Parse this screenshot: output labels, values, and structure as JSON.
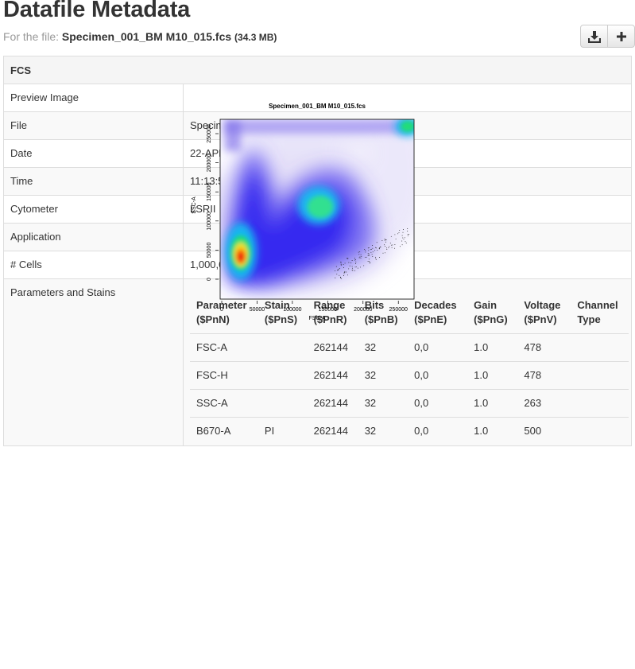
{
  "header": {
    "title": "Datafile Metadata",
    "for_prefix": "For the file:",
    "file_name": "Specimen_001_BM M10_015.fcs",
    "file_size": "(34.3 MB)"
  },
  "buttons": {
    "download_icon": "download-icon",
    "add_icon": "plus-icon"
  },
  "section_title": "FCS",
  "preview": {
    "label": "Preview Image",
    "plot_title": "Specimen_001_BM M10_015.fcs",
    "xlabel": "FSC-A",
    "ylabel": "SSC-A",
    "x_ticks": [
      "0",
      "50000",
      "100000",
      "150000",
      "200000",
      "250000"
    ],
    "y_ticks": [
      "0",
      "50000",
      "100000",
      "150000",
      "200000",
      "250000"
    ]
  },
  "rows": [
    {
      "label": "File",
      "value": "Specimen_001_BM M10_015.fcs"
    },
    {
      "label": "Date",
      "value": "22-APR-2015"
    },
    {
      "label": "Time",
      "value": "11:13:56"
    },
    {
      "label": "Cytometer",
      "value": "LSRII"
    },
    {
      "label": "Application",
      "value": ""
    },
    {
      "label": "# Cells",
      "value": "1,000,000"
    }
  ],
  "params_label": "Parameters and Stains",
  "param_headers": [
    {
      "line1": "Parameter",
      "line2": "($PnN)"
    },
    {
      "line1": "Stain",
      "line2": "($PnS)"
    },
    {
      "line1": "Range",
      "line2": "($PnR)"
    },
    {
      "line1": "Bits",
      "line2": "($PnB)"
    },
    {
      "line1": "Decades",
      "line2": "($PnE)"
    },
    {
      "line1": "Gain",
      "line2": "($PnG)"
    },
    {
      "line1": "Voltage",
      "line2": "($PnV)"
    },
    {
      "line1": "Channel",
      "line2": "Type"
    }
  ],
  "param_rows": [
    [
      "FSC-A",
      "",
      "262144",
      "32",
      "0,0",
      "1.0",
      "478",
      ""
    ],
    [
      "FSC-H",
      "",
      "262144",
      "32",
      "0,0",
      "1.0",
      "478",
      ""
    ],
    [
      "SSC-A",
      "",
      "262144",
      "32",
      "0,0",
      "1.0",
      "263",
      ""
    ],
    [
      "B670-A",
      "PI",
      "262144",
      "32",
      "0,0",
      "1.0",
      "500",
      ""
    ]
  ],
  "colors": {
    "border": "#dddddd",
    "header_bg": "#f5f5f5",
    "stripe_bg": "#f9f9f9",
    "muted_text": "#999999",
    "text": "#333333"
  }
}
